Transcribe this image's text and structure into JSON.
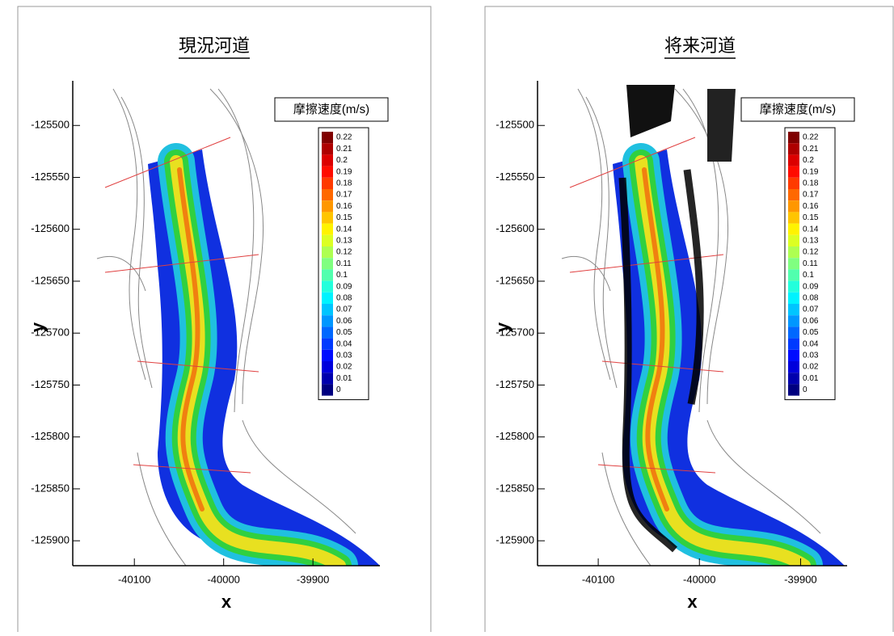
{
  "chart_data": [
    {
      "type": "contour",
      "title": "現況河道",
      "colorbar_title": "摩擦速度(m/s)",
      "levels": [
        0.22,
        0.21,
        0.2,
        0.19,
        0.18,
        0.17,
        0.16,
        0.15,
        0.14,
        0.13,
        0.12,
        0.11,
        0.1,
        0.09,
        0.08,
        0.07,
        0.06,
        0.05,
        0.04,
        0.03,
        0.02,
        0.01,
        0
      ],
      "xlabel": "x",
      "ylabel": "y",
      "xlim": [
        -40169,
        -39825
      ],
      "ylim": [
        -125924,
        -125457
      ],
      "xticks": [
        -40100,
        -40000,
        -39900
      ],
      "yticks": [
        -125500,
        -125550,
        -125600,
        -125650,
        -125700,
        -125750,
        -125800,
        -125850,
        -125900
      ]
    },
    {
      "type": "contour",
      "title": "将来河道",
      "colorbar_title": "摩擦速度(m/s)",
      "levels": [
        0.22,
        0.21,
        0.2,
        0.19,
        0.18,
        0.17,
        0.16,
        0.15,
        0.14,
        0.13,
        0.12,
        0.11,
        0.1,
        0.09,
        0.08,
        0.07,
        0.06,
        0.05,
        0.04,
        0.03,
        0.02,
        0.01,
        0
      ],
      "xlabel": "x",
      "ylabel": "y",
      "xlim": [
        -40160,
        -39854
      ],
      "ylim": [
        -125924,
        -125457
      ],
      "xticks": [
        -40100,
        -40000,
        -39900
      ],
      "yticks": [
        -125500,
        -125550,
        -125600,
        -125650,
        -125700,
        -125750,
        -125800,
        -125850,
        -125900
      ]
    }
  ]
}
